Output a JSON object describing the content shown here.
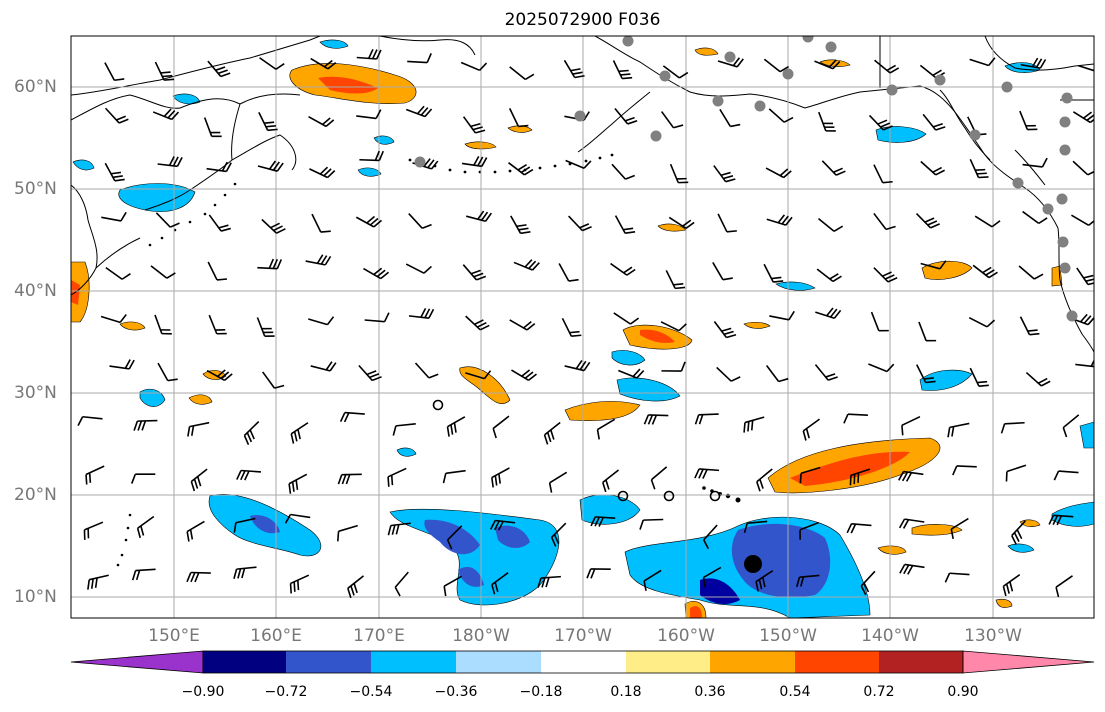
{
  "title": "2025072900 F036",
  "lat_labels": [
    "60°N",
    "50°N",
    "40°N",
    "30°N",
    "20°N",
    "10°N"
  ],
  "lon_labels": [
    "150°E",
    "160°E",
    "170°E",
    "180°W",
    "170°W",
    "160°W",
    "150°W",
    "140°W",
    "130°W"
  ],
  "colorbar": {
    "ticks": [
      "−0.90",
      "−0.72",
      "−0.54",
      "−0.36",
      "−0.18",
      "0.18",
      "0.36",
      "0.54",
      "0.72",
      "0.90"
    ],
    "colors": [
      "#9933cc",
      "#000080",
      "#3355cc",
      "#00bfff",
      "#aaddff",
      "#ffffff",
      "#ffee88",
      "#ffa500",
      "#ff4500",
      "#b22222",
      "#ff88aa"
    ]
  },
  "field_colors": {
    "orange": "#ffa500",
    "red": "#ff4500",
    "light_blue": "#00bfff",
    "blue": "#3355cc",
    "dark_blue": "#0000a0",
    "station_marker": "#808080"
  }
}
